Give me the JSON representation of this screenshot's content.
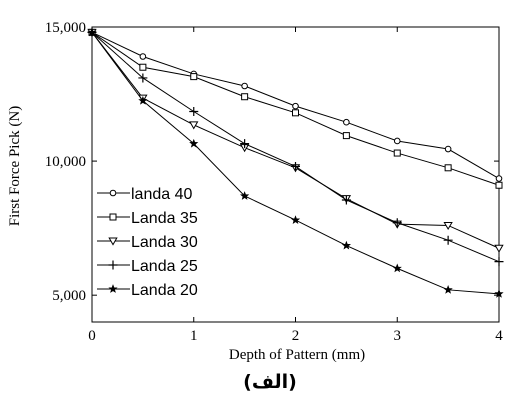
{
  "chart_data": {
    "type": "line",
    "xlabel": "Depth of Pattern (mm)",
    "ylabel": "First Force Pick (N)",
    "xlim": [
      0,
      4
    ],
    "ylim": [
      4000,
      15000
    ],
    "xticks": [
      0,
      1,
      2,
      3,
      4
    ],
    "xtick_labels": [
      "0",
      "1",
      "2",
      "3",
      "4"
    ],
    "yticks": [
      5000,
      10000,
      15000
    ],
    "ytick_labels": [
      "5,000",
      "10,000",
      "15,000"
    ],
    "grid": false,
    "legend_position": "left",
    "x": [
      0,
      0.5,
      1,
      1.5,
      2,
      2.5,
      3,
      3.5,
      4
    ],
    "series": [
      {
        "name": "landa 40",
        "marker": "circle",
        "values": [
          14800,
          13900,
          13250,
          12800,
          12050,
          11450,
          10750,
          10450,
          9350
        ]
      },
      {
        "name": "Landa 35",
        "marker": "square",
        "values": [
          14800,
          13500,
          13150,
          12400,
          11800,
          10950,
          10300,
          9750,
          9100
        ]
      },
      {
        "name": "Landa 30",
        "marker": "triangle-down",
        "values": [
          14800,
          12350,
          11350,
          10500,
          9750,
          8600,
          7650,
          7600,
          6750
        ]
      },
      {
        "name": "Landa 25",
        "marker": "plus",
        "values": [
          14800,
          13100,
          11850,
          10650,
          9800,
          8550,
          7700,
          7050,
          6250
        ]
      },
      {
        "name": "Landa 20",
        "marker": "star",
        "values": [
          14800,
          12250,
          10650,
          8700,
          7800,
          6850,
          6000,
          5200,
          5050
        ]
      }
    ]
  },
  "caption": "(الف)"
}
